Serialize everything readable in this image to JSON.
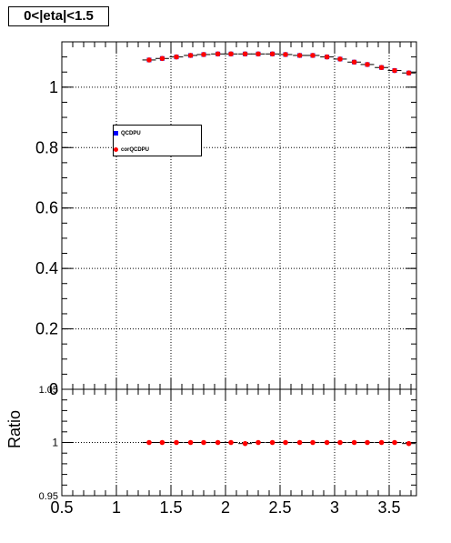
{
  "title": "0<|eta|<1.5",
  "chart_data": [
    {
      "type": "scatter",
      "panel": "main",
      "xlim": [
        0.5,
        3.75
      ],
      "ylim": [
        0,
        1.15
      ],
      "xlabel": "",
      "ylabel": "",
      "grid": true,
      "legend_position": "upper-left",
      "y_ticks": [
        0,
        0.2,
        0.4,
        0.6,
        0.8,
        1
      ],
      "y_tick_labels": [
        "0",
        "0.2",
        "0.4",
        "0.6",
        "0.8",
        "1"
      ],
      "x": [
        1.3,
        1.42,
        1.55,
        1.68,
        1.8,
        1.93,
        2.05,
        2.18,
        2.3,
        2.43,
        2.55,
        2.68,
        2.8,
        2.93,
        3.05,
        3.18,
        3.3,
        3.43,
        3.55,
        3.68
      ],
      "series": [
        {
          "name": "QCDPU",
          "color": "#0000ff",
          "marker": "square",
          "values": [
            1.09,
            1.095,
            1.1,
            1.105,
            1.108,
            1.11,
            1.11,
            1.11,
            1.11,
            1.11,
            1.108,
            1.105,
            1.105,
            1.1,
            1.093,
            1.083,
            1.075,
            1.065,
            1.055,
            1.047
          ]
        },
        {
          "name": "corQCDPU",
          "color": "#ff0000",
          "marker": "circle",
          "values": [
            1.09,
            1.095,
            1.1,
            1.105,
            1.108,
            1.11,
            1.11,
            1.11,
            1.11,
            1.11,
            1.108,
            1.105,
            1.105,
            1.1,
            1.093,
            1.083,
            1.075,
            1.065,
            1.055,
            1.047
          ]
        }
      ]
    },
    {
      "type": "scatter",
      "panel": "ratio",
      "xlim": [
        0.5,
        3.75
      ],
      "ylim": [
        0.95,
        1.05
      ],
      "xlabel": "",
      "ylabel": "Ratio",
      "grid": true,
      "y_ticks": [
        0.95,
        1,
        1.05
      ],
      "y_tick_labels": [
        "0.95",
        "1",
        "1.05"
      ],
      "x_ticks": [
        0.5,
        1,
        1.5,
        2,
        2.5,
        3,
        3.5
      ],
      "x_tick_labels": [
        "0.5",
        "1",
        "1.5",
        "2",
        "2.5",
        "3",
        "3.5"
      ],
      "x": [
        1.3,
        1.42,
        1.55,
        1.68,
        1.8,
        1.93,
        2.05,
        2.18,
        2.3,
        2.43,
        2.55,
        2.68,
        2.8,
        2.93,
        3.05,
        3.18,
        3.3,
        3.43,
        3.55,
        3.68
      ],
      "series": [
        {
          "name": "",
          "color": "#ff0000",
          "marker": "circle",
          "values": [
            1.0,
            1.0,
            1.0,
            1.0,
            1.0,
            1.0,
            1.0,
            0.999,
            1.0,
            1.0,
            1.0,
            1.0,
            1.0,
            1.0,
            1.0,
            1.0,
            1.0,
            1.0,
            1.0,
            0.999
          ]
        }
      ]
    }
  ]
}
